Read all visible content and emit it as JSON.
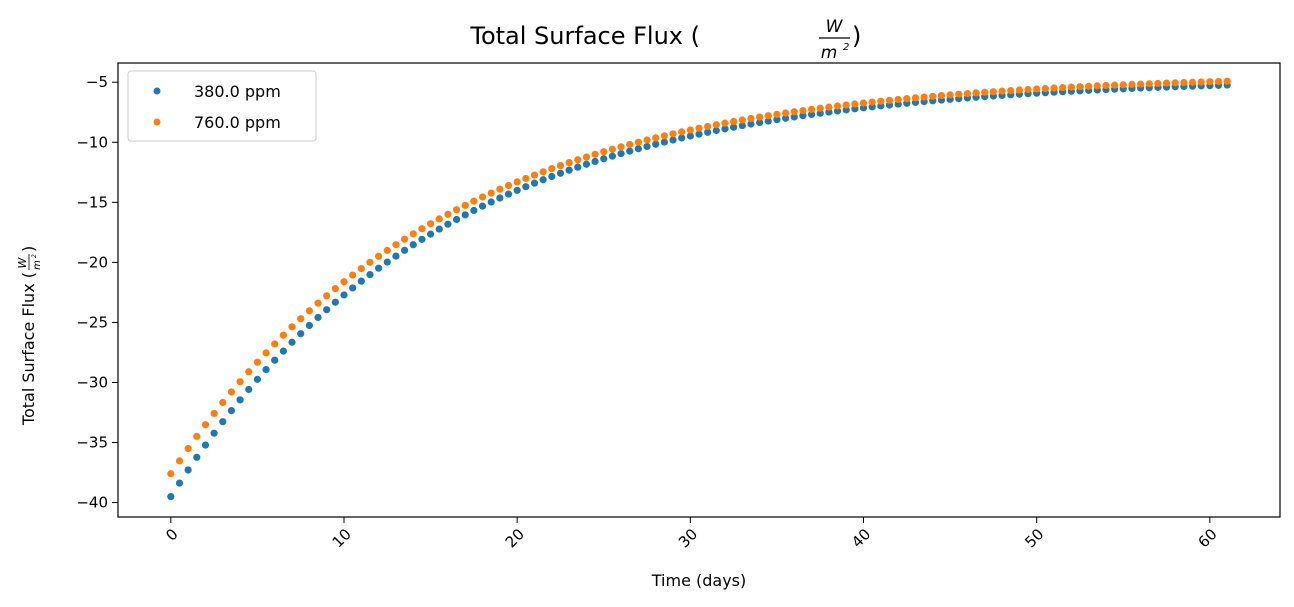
{
  "chart_data": {
    "type": "scatter",
    "title": "Total Surface Flux (",
    "title_close": ")",
    "unit_numerator": "W",
    "unit_denominator": "m",
    "unit_exponent": "2",
    "xlabel": "Time (days)",
    "ylabel": "Total Surface Flux (",
    "ylabel_close": ")",
    "xlim": [
      -3.05,
      64.05
    ],
    "ylim": [
      -41.2,
      -3.4
    ],
    "xticks": [
      0,
      10,
      20,
      30,
      40,
      50,
      60
    ],
    "xtick_labels": [
      "0",
      "10",
      "20",
      "30",
      "40",
      "50",
      "60"
    ],
    "yticks": [
      -40,
      -35,
      -30,
      -25,
      -20,
      -15,
      -10,
      -5
    ],
    "ytick_labels": [
      "−40",
      "−35",
      "−30",
      "−25",
      "−20",
      "−15",
      "−10",
      "−5"
    ],
    "legend_position": "top-left",
    "x_step": 0.5,
    "x_start": 0,
    "x_end": 61,
    "series": [
      {
        "name": "380.0 ppm",
        "color": "#1f77b4",
        "start_value": -39.5,
        "end_value": -5.5,
        "sample_values": [
          {
            "x": 0,
            "y": -39.5
          },
          {
            "x": 10,
            "y": -22.8
          },
          {
            "x": 20,
            "y": -14.0
          },
          {
            "x": 30,
            "y": -9.6
          },
          {
            "x": 40,
            "y": -7.4
          },
          {
            "x": 50,
            "y": -6.2
          },
          {
            "x": 61,
            "y": -5.5
          }
        ]
      },
      {
        "name": "760.0 ppm",
        "color": "#ff7f0e",
        "start_value": -37.6,
        "end_value": -5.2,
        "sample_values": [
          {
            "x": 0,
            "y": -37.6
          },
          {
            "x": 10,
            "y": -21.5
          },
          {
            "x": 20,
            "y": -13.3
          },
          {
            "x": 30,
            "y": -9.2
          },
          {
            "x": 40,
            "y": -7.0
          },
          {
            "x": 50,
            "y": -5.9
          },
          {
            "x": 61,
            "y": -5.2
          }
        ]
      }
    ]
  }
}
